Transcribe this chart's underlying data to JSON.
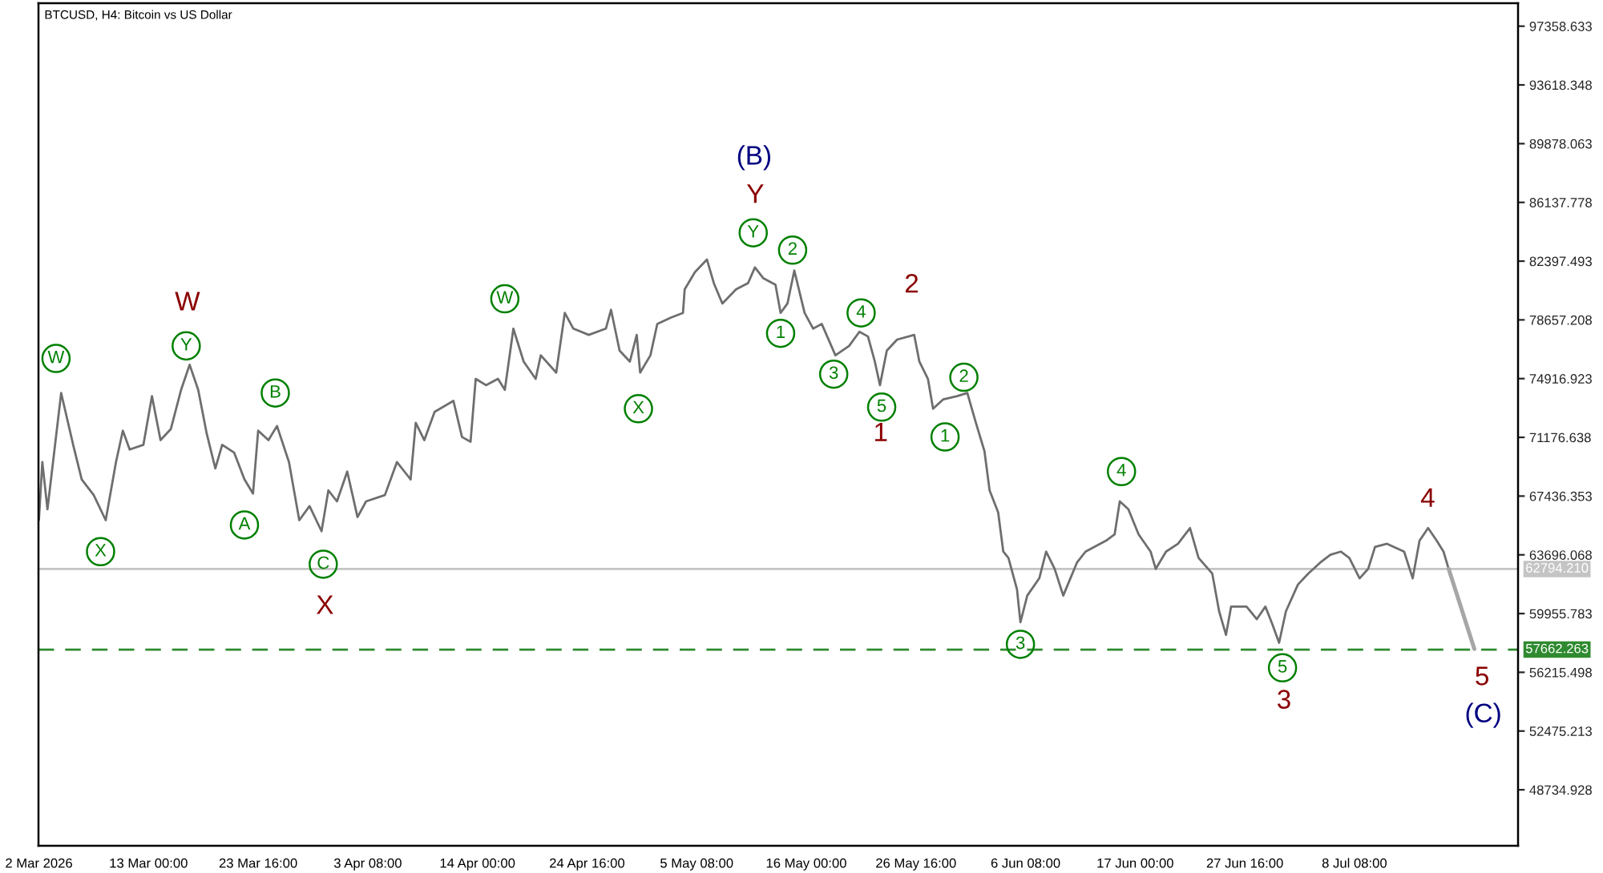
{
  "chart_data": {
    "type": "line",
    "title": "BTCUSD, H4: Bitcoin vs US Dollar",
    "x": [
      "2026-03-02T08:00",
      "2026-03-02T16:00",
      "2026-03-03T04:00",
      "2026-03-04T12:00",
      "2026-03-05T16:00",
      "2026-03-06T12:00",
      "2026-03-07T16:00",
      "2026-03-08T20:00",
      "2026-03-09T20:00",
      "2026-03-10T12:00",
      "2026-03-11T04:00",
      "2026-03-12T12:00",
      "2026-03-13T08:00",
      "2026-03-14T04:00",
      "2026-03-15T04:00",
      "2026-03-16T04:00",
      "2026-03-17T00:00",
      "2026-03-17T20:00",
      "2026-03-18T16:00",
      "2026-03-19T12:00",
      "2026-03-20T04:00",
      "2026-03-21T08:00",
      "2026-03-22T08:00",
      "2026-03-23T04:00",
      "2026-03-23T16:00",
      "2026-03-24T16:00",
      "2026-03-25T12:00",
      "2026-03-26T16:00",
      "2026-03-27T16:00",
      "2026-03-28T16:00",
      "2026-03-29T20:00",
      "2026-03-30T12:00",
      "2026-03-31T08:00",
      "2026-04-01T08:00",
      "2026-04-02T08:00",
      "2026-04-03T04:00",
      "2026-04-05T00:00",
      "2026-04-06T04:00",
      "2026-04-07T12:00",
      "2026-04-08T00:00",
      "2026-04-08T20:00",
      "2026-04-09T20:00",
      "2026-04-11T16:00",
      "2026-04-12T12:00",
      "2026-04-13T08:00",
      "2026-04-13T20:00",
      "2026-04-14T20:00",
      "2026-04-16T00:00",
      "2026-04-16T16:00",
      "2026-04-17T12:00",
      "2026-04-18T12:00",
      "2026-04-19T16:00",
      "2026-04-20T04:00",
      "2026-04-21T16:00",
      "2026-04-22T12:00",
      "2026-04-23T08:00",
      "2026-04-24T20:00",
      "2026-04-26T12:00",
      "2026-04-27T00:00",
      "2026-04-27T20:00",
      "2026-04-28T20:00",
      "2026-04-29T12:00",
      "2026-04-29T20:00",
      "2026-04-30T20:00",
      "2026-05-01T12:00",
      "2026-05-02T20:00",
      "2026-05-04T00:00",
      "2026-05-04T04:00",
      "2026-05-05T04:00",
      "2026-05-06T08:00",
      "2026-05-07T00:00",
      "2026-05-07T20:00",
      "2026-05-09T04:00",
      "2026-05-10T08:00",
      "2026-05-11T00:00",
      "2026-05-11T20:00",
      "2026-05-13T00:00",
      "2026-05-13T12:00",
      "2026-05-14T04:00",
      "2026-05-14T20:00",
      "2026-05-15T20:00",
      "2026-05-16T16:00",
      "2026-05-17T12:00",
      "2026-05-18T20:00",
      "2026-05-20T04:00",
      "2026-05-21T04:00",
      "2026-05-22T00:00",
      "2026-05-22T16:00",
      "2026-05-23T04:00",
      "2026-05-23T20:00",
      "2026-05-24T20:00",
      "2026-05-26T12:00",
      "2026-05-27T00:00",
      "2026-05-27T20:00",
      "2026-05-28T08:00",
      "2026-05-29T08:00",
      "2026-05-30T16:00",
      "2026-05-31T16:00",
      "2026-06-01T12:00",
      "2026-06-02T08:00",
      "2026-06-02T20:00",
      "2026-06-03T16:00",
      "2026-06-04T04:00",
      "2026-06-04T16:00",
      "2026-06-05T12:00",
      "2026-06-05T20:00",
      "2026-06-06T12:00",
      "2026-06-07T16:00",
      "2026-06-08T08:00",
      "2026-06-09T04:00",
      "2026-06-10T00:00",
      "2026-06-11T08:00",
      "2026-06-12T04:00",
      "2026-06-14T04:00",
      "2026-06-15T00:00",
      "2026-06-15T12:00",
      "2026-06-16T08:00",
      "2026-06-17T08:00",
      "2026-06-18T12:00",
      "2026-06-19T00:00",
      "2026-06-20T00:00",
      "2026-06-21T04:00",
      "2026-06-22T08:00",
      "2026-06-23T04:00",
      "2026-06-24T12:00",
      "2026-06-25T04:00",
      "2026-06-25T20:00",
      "2026-06-26T08:00",
      "2026-06-27T20:00",
      "2026-06-28T20:00",
      "2026-06-29T16:00",
      "2026-06-30T08:00",
      "2026-07-01T00:00",
      "2026-07-01T16:00",
      "2026-07-02T20:00",
      "2026-07-03T20:00",
      "2026-07-05T00:00",
      "2026-07-06T00:00",
      "2026-07-07T00:00",
      "2026-07-07T20:00",
      "2026-07-08T20:00",
      "2026-07-09T16:00",
      "2026-07-10T08:00",
      "2026-07-11T12:00",
      "2026-07-13T04:00",
      "2026-07-14T00:00",
      "2026-07-14T16:00",
      "2026-07-15T12:00",
      "2026-07-16T08:00",
      "2026-07-17T00:00",
      "2026-07-17T12:00"
    ],
    "series": [
      {
        "color": "#6e6e6e",
        "values": [
          65900,
          69600,
          66600,
          74000,
          70700,
          68500,
          67500,
          65900,
          69600,
          71600,
          70400,
          70700,
          73800,
          71000,
          71700,
          74200,
          75800,
          74200,
          71400,
          69200,
          70700,
          70200,
          68500,
          67600,
          71600,
          71000,
          71900,
          69600,
          65900,
          66800,
          65200,
          67800,
          67100,
          69000,
          66100,
          67100,
          67500,
          69600,
          68500,
          72100,
          71000,
          72800,
          73500,
          71200,
          70900,
          74900,
          74500,
          74900,
          74200,
          78100,
          76000,
          74900,
          76400,
          75300,
          79100,
          78100,
          77700,
          78100,
          79300,
          76700,
          76000,
          77700,
          75300,
          76400,
          78400,
          78800,
          79100,
          80600,
          81700,
          82500,
          81000,
          79700,
          80600,
          81000,
          82000,
          81300,
          80900,
          79100,
          79700,
          81800,
          79100,
          78100,
          78400,
          76400,
          77000,
          77900,
          77600,
          76000,
          74500,
          76700,
          77400,
          77700,
          76000,
          74900,
          73000,
          73600,
          73800,
          74000,
          72100,
          70300,
          67800,
          66400,
          63900,
          63500,
          61500,
          59400,
          61100,
          62200,
          63900,
          62800,
          61100,
          63200,
          63900,
          64600,
          65000,
          67100,
          66600,
          65000,
          63900,
          62800,
          63900,
          64400,
          65400,
          63500,
          62500,
          60100,
          58600,
          60400,
          60400,
          59600,
          60400,
          59300,
          58100,
          60100,
          61800,
          62500,
          63200,
          63700,
          63900,
          63500,
          62200,
          62800,
          64200,
          64400,
          63900,
          62200,
          64600,
          65400,
          64600,
          63900,
          62800
        ]
      },
      {
        "type": "line",
        "color": "#a6a6a6",
        "x": [
          "2026-07-17T12:00",
          "2026-07-20T00:00"
        ],
        "values": [
          62800,
          57700
        ]
      },
      {
        "type": "scatter",
        "marker": "circle",
        "name": "W",
        "color": "#008000",
        "x": [
          "2026-03-04T00:00"
        ],
        "values": [
          76200
        ]
      },
      {
        "type": "scatter",
        "marker": "circle",
        "name": "X",
        "color": "#008000",
        "x": [
          "2026-03-08T08:00"
        ],
        "values": [
          63900
        ]
      },
      {
        "type": "scatter",
        "marker": "circle",
        "name": "Y",
        "color": "#008000",
        "x": [
          "2026-03-16T16:00"
        ],
        "values": [
          77000
        ]
      },
      {
        "type": "scatter",
        "marker": "circle",
        "name": "A",
        "color": "#008000",
        "x": [
          "2026-03-22T08:00"
        ],
        "values": [
          65600
        ]
      },
      {
        "type": "scatter",
        "marker": "circle",
        "name": "B",
        "color": "#008000",
        "x": [
          "2026-03-25T08:00"
        ],
        "values": [
          74000
        ]
      },
      {
        "type": "scatter",
        "marker": "circle",
        "name": "C",
        "color": "#008000",
        "x": [
          "2026-03-30T00:00"
        ],
        "values": [
          63100
        ]
      },
      {
        "type": "scatter",
        "marker": "circle",
        "name": "W",
        "color": "#008000",
        "x": [
          "2026-04-16T16:00"
        ],
        "values": [
          80000
        ]
      },
      {
        "type": "scatter",
        "marker": "circle",
        "name": "X",
        "color": "#008000",
        "x": [
          "2026-04-29T16:00"
        ],
        "values": [
          73000
        ]
      },
      {
        "type": "scatter",
        "marker": "circle",
        "name": "Y",
        "color": "#008000",
        "x": [
          "2026-05-10T20:00"
        ],
        "values": [
          84200
        ]
      },
      {
        "type": "scatter",
        "marker": "circle",
        "name": "1",
        "color": "#008000",
        "x": [
          "2026-05-13T12:00"
        ],
        "values": [
          77800
        ]
      },
      {
        "type": "scatter",
        "marker": "circle",
        "name": "2",
        "color": "#008000",
        "x": [
          "2026-05-14T16:00"
        ],
        "values": [
          83100
        ]
      },
      {
        "type": "scatter",
        "marker": "circle",
        "name": "3",
        "color": "#008000",
        "x": [
          "2026-05-18T16:00"
        ],
        "values": [
          75200
        ]
      },
      {
        "type": "scatter",
        "marker": "circle",
        "name": "4",
        "color": "#008000",
        "x": [
          "2026-05-21T08:00"
        ],
        "values": [
          79100
        ]
      },
      {
        "type": "scatter",
        "marker": "circle",
        "name": "5",
        "color": "#008000",
        "x": [
          "2026-05-23T08:00"
        ],
        "values": [
          73100
        ]
      },
      {
        "type": "scatter",
        "marker": "circle",
        "name": "1",
        "color": "#008000",
        "x": [
          "2026-05-29T12:00"
        ],
        "values": [
          71200
        ]
      },
      {
        "type": "scatter",
        "marker": "circle",
        "name": "2",
        "color": "#008000",
        "x": [
          "2026-05-31T08:00"
        ],
        "values": [
          75000
        ]
      },
      {
        "type": "scatter",
        "marker": "circle",
        "name": "3",
        "color": "#008000",
        "x": [
          "2026-06-05T20:00"
        ],
        "values": [
          58000
        ]
      },
      {
        "type": "scatter",
        "marker": "circle",
        "name": "4",
        "color": "#008000",
        "x": [
          "2026-06-15T16:00"
        ],
        "values": [
          69000
        ]
      },
      {
        "type": "scatter",
        "marker": "circle",
        "name": "5",
        "color": "#008000",
        "x": [
          "2026-07-01T08:00"
        ],
        "values": [
          56500
        ]
      }
    ],
    "xlim": [
      "2026-03-02T07:00",
      "2026-07-24T06:00"
    ],
    "xticks": [
      {
        "value": "2026-03-02T08:00",
        "label": "2 Mar 2026"
      },
      {
        "value": "2026-03-13T00:00",
        "label": "13 Mar 00:00"
      },
      {
        "value": "2026-03-23T16:00",
        "label": "23 Mar 16:00"
      },
      {
        "value": "2026-04-03T08:00",
        "label": "3 Apr 08:00"
      },
      {
        "value": "2026-04-14T00:00",
        "label": "14 Apr 00:00"
      },
      {
        "value": "2026-04-24T16:00",
        "label": "24 Apr 16:00"
      },
      {
        "value": "2026-05-05T08:00",
        "label": "5 May 08:00"
      },
      {
        "value": "2026-05-16T00:00",
        "label": "16 May 00:00"
      },
      {
        "value": "2026-05-26T16:00",
        "label": "26 May 16:00"
      },
      {
        "value": "2026-06-06T08:00",
        "label": "6 Jun 08:00"
      },
      {
        "value": "2026-06-17T00:00",
        "label": "17 Jun 00:00"
      },
      {
        "value": "2026-06-27T16:00",
        "label": "27 Jun 16:00"
      },
      {
        "value": "2026-07-08T08:00",
        "label": "8 Jul 08:00"
      }
    ],
    "ylim": [
      45170,
      98820
    ],
    "yticks": [
      97358.633,
      93618.348,
      89878.063,
      86137.778,
      82397.493,
      78657.208,
      74916.923,
      71176.638,
      67436.353,
      63696.068,
      59955.783,
      56215.498,
      52475.213,
      48734.928
    ],
    "ref_lines": [
      {
        "axis": "y",
        "value": 62794.21,
        "label": "62794.210",
        "color": "#c4c4c4",
        "line_style": "solid"
      },
      {
        "axis": "y",
        "value": 57662.263,
        "label": "57662.263",
        "color": "#2f8a2f",
        "line_style": "dashed"
      }
    ],
    "annotations": [
      "W",
      "X",
      "(B)",
      "Y",
      "1",
      "2",
      "3",
      "4",
      "5",
      "(C)"
    ]
  }
}
